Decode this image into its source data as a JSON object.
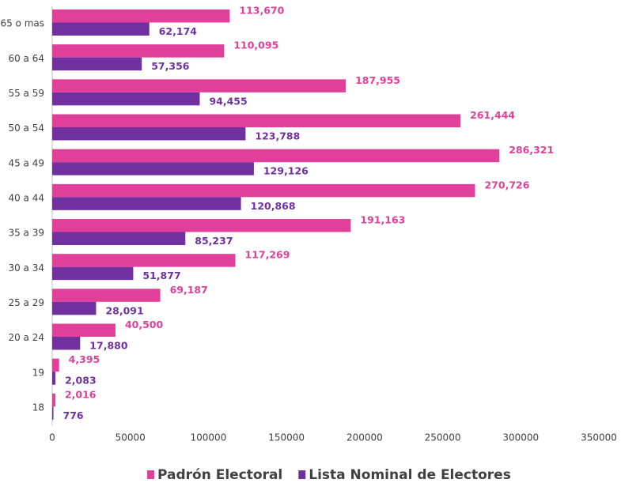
{
  "chart_data": {
    "type": "bar",
    "orientation": "horizontal",
    "categories": [
      "65 o mas",
      "60 a 64",
      "55 a 59",
      "50 a 54",
      "45 a 49",
      "40 a 44",
      "35 a 39",
      "30 a 34",
      "25 a 29",
      "20 a 24",
      "19",
      "18"
    ],
    "series": [
      {
        "name": "Padrón Electoral",
        "color": "#e0409a",
        "values": [
          113670,
          110095,
          187955,
          261444,
          286321,
          270726,
          191163,
          117269,
          69187,
          40500,
          4395,
          2016
        ],
        "value_labels": [
          "113,670",
          "110,095",
          "187,955",
          "261,444",
          "286,321",
          "270,726",
          "191,163",
          "117,269",
          "69,187",
          "40,500",
          "4,395",
          "2,016"
        ]
      },
      {
        "name": "Lista Nominal de Electores",
        "color": "#7030a0",
        "values": [
          62174,
          57356,
          94455,
          123788,
          129126,
          120868,
          85237,
          51877,
          28091,
          17880,
          2083,
          776
        ],
        "value_labels": [
          "62,174",
          "57,356",
          "94,455",
          "123,788",
          "129,126",
          "120,868",
          "85,237",
          "51,877",
          "28,091",
          "17,880",
          "2,083",
          "776"
        ]
      }
    ],
    "xlim": [
      0,
      350000
    ],
    "xticks": [
      0,
      50000,
      100000,
      150000,
      200000,
      250000,
      300000,
      350000
    ],
    "legend": "bottom"
  }
}
